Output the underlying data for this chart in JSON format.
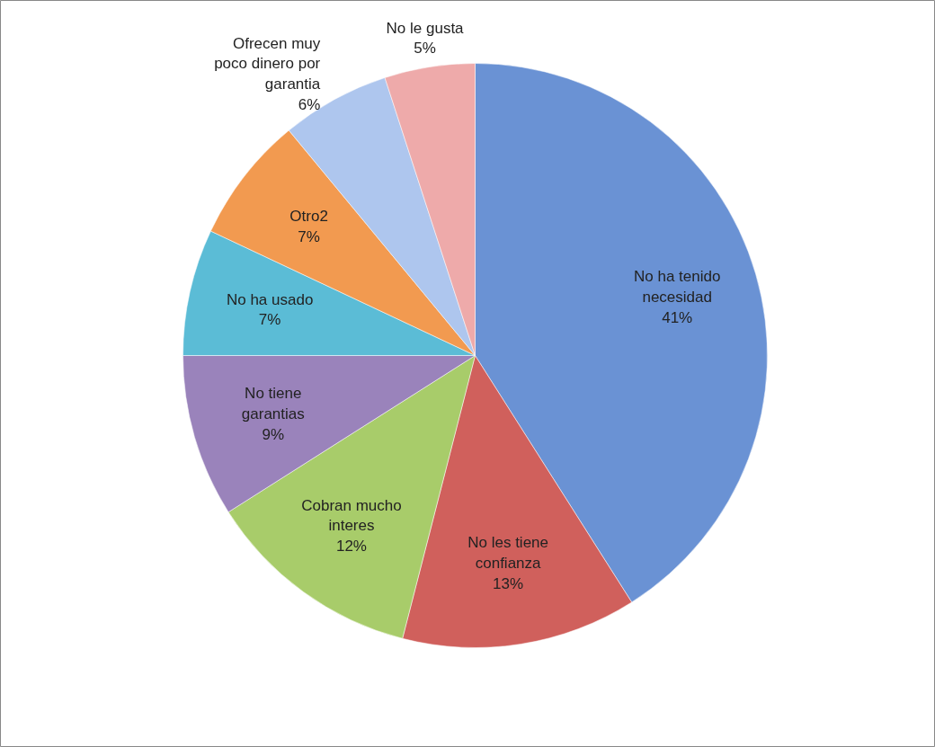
{
  "chart_data": {
    "type": "pie",
    "categories": [
      "No ha tenido necesidad",
      "No les tiene confianza",
      "Cobran mucho interes",
      "No tiene garantias",
      "No ha usado",
      "Otro2",
      "Ofrecen muy poco dinero por garantia",
      "No le gusta"
    ],
    "values": [
      41,
      13,
      12,
      9,
      7,
      7,
      6,
      5
    ],
    "value_labels": [
      "41%",
      "13%",
      "12%",
      "9%",
      "7%",
      "7%",
      "6%",
      "5%"
    ],
    "colors": [
      "#6a92d4",
      "#d0605c",
      "#a8cc6a",
      "#9a83bb",
      "#5bbcd6",
      "#f29a50",
      "#aec6ee",
      "#eeaaaa"
    ]
  }
}
